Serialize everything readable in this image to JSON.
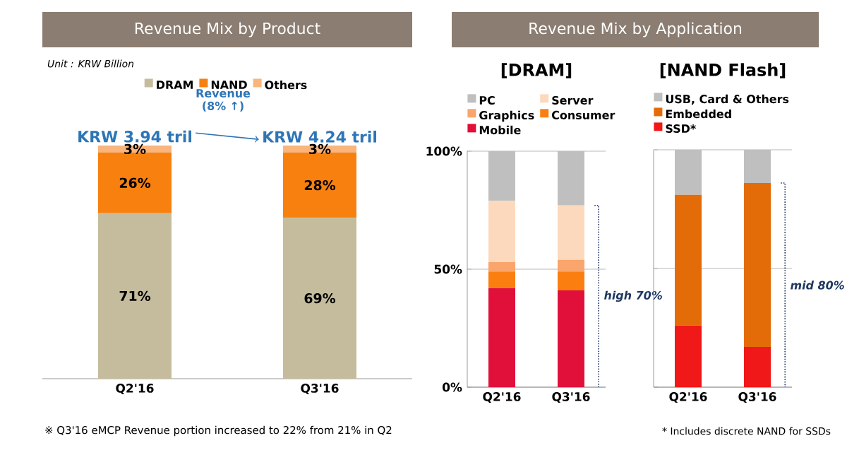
{
  "chart_data": [
    {
      "type": "bar",
      "title": "Revenue Mix by Product",
      "stacked": true,
      "legend": "top",
      "categories": [
        "Q2'16",
        "Q3'16"
      ],
      "series": [
        {
          "name": "DRAM",
          "color": "#c4bc9c",
          "values": [
            71,
            69
          ],
          "value_labels": [
            "71%",
            "69%"
          ]
        },
        {
          "name": "NAND",
          "color": "#f7800f",
          "values": [
            26,
            28
          ],
          "value_labels": [
            "26%",
            "28%"
          ]
        },
        {
          "name": "Others",
          "color": "#f9b57c",
          "values": [
            3,
            3
          ],
          "value_labels": [
            "3%",
            "3%"
          ]
        }
      ],
      "totals": [
        "KRW 3.94 tril",
        "KRW 4.24 tril"
      ],
      "annotations": [
        "Unit : KRW Billion",
        "Revenue (8% ↑)",
        "※ Q3'16 eMCP Revenue portion increased to 22% from 21% in Q2"
      ]
    },
    {
      "type": "bar",
      "title": "Revenue Mix by Application",
      "subtitle": "[DRAM]",
      "stacked": true,
      "legend": "top left",
      "grid": "y",
      "categories": [
        "Q2'16",
        "Q3'16"
      ],
      "ylim": [
        0,
        100
      ],
      "yticks": [
        {
          "value": 0,
          "label": "0%"
        },
        {
          "value": 50,
          "label": "50%"
        },
        {
          "value": 100,
          "label": "100%"
        }
      ],
      "series": [
        {
          "name": "Mobile",
          "color": "#e0103a",
          "values": [
            42,
            41
          ]
        },
        {
          "name": "Consumer",
          "color": "#fb7f10",
          "values": [
            7,
            8
          ]
        },
        {
          "name": "Graphics",
          "color": "#f9a56b",
          "values": [
            4,
            5
          ]
        },
        {
          "name": "Server",
          "color": "#fcd9bd",
          "values": [
            26,
            23
          ]
        },
        {
          "name": "PC",
          "color": "#bfbfbf",
          "values": [
            21,
            23
          ]
        }
      ],
      "annotations": [
        "high 70%"
      ]
    },
    {
      "type": "bar",
      "title": "[NAND Flash]",
      "stacked": true,
      "legend": "top left",
      "grid": "y",
      "tick_labels": "x",
      "categories": [
        "Q2'16",
        "Q3'16"
      ],
      "ylim": [
        0,
        100
      ],
      "yticks": [
        {
          "value": 0,
          "label": null
        },
        {
          "value": 50,
          "label": null
        },
        {
          "value": 100,
          "label": null
        }
      ],
      "series": [
        {
          "name": "SSD*",
          "color": "#f01818",
          "values": [
            26,
            17
          ]
        },
        {
          "name": "Embedded",
          "color": "#e36c09",
          "values": [
            55,
            69
          ]
        },
        {
          "name": "USB, Card & Others",
          "color": "#bfbfbf",
          "values": [
            19,
            14
          ]
        }
      ],
      "annotations": [
        "mid 80%",
        "* Includes discrete NAND for SSDs"
      ]
    }
  ]
}
